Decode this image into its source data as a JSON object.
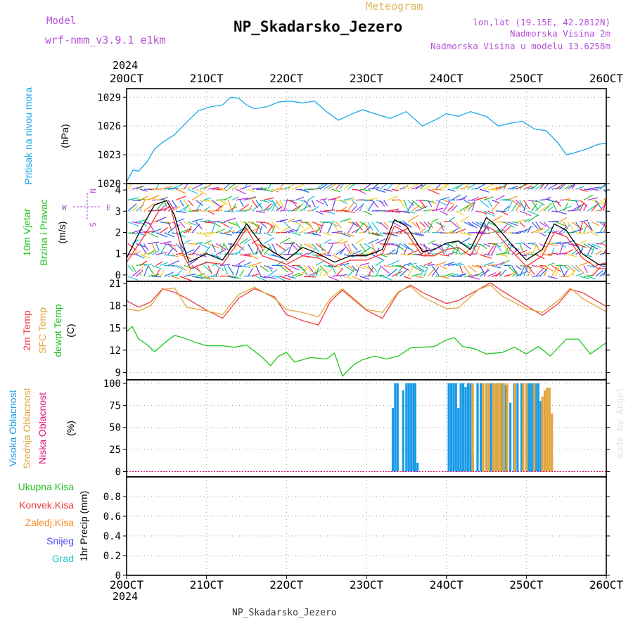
{
  "header": {
    "model_label": "Model",
    "model_value": "wrf-nmm_v3.9.1  e1km",
    "meteogram_label": "Meteogram",
    "station_title": "NP_Skadarsko_Jezero",
    "coords": "lon,lat (19.15E, 42.2812N)",
    "elevation": "Nadmorska Visina 2m",
    "model_elevation": "Nadmorska Visina u modelu 13.6258m",
    "footer_station": "NP_Skadarsko_Jezero",
    "watermark": "made by Angel",
    "colors": {
      "purple": "#b44fd8",
      "gold": "#e0b860",
      "black": "#000000"
    }
  },
  "time_axis": {
    "year": "2024",
    "ticks": [
      "20OCT",
      "21OCT",
      "22OCT",
      "23OCT",
      "24OCT",
      "25OCT",
      "26OCT"
    ]
  },
  "chart_data": [
    {
      "type": "line",
      "panel": "pressure",
      "ylabel": [
        "Pritisak na nivou mora",
        "(hPa)"
      ],
      "ylim": [
        1020,
        1029.9
      ],
      "yticks": [
        1020,
        1023,
        1026,
        1029
      ],
      "x_unit": "days since 20OCT",
      "series": [
        {
          "color": "#1aa8e8",
          "x": [
            0,
            0.08,
            0.15,
            0.25,
            0.35,
            0.45,
            0.6,
            0.75,
            0.9,
            1.05,
            1.2,
            1.3,
            1.4,
            1.5,
            1.6,
            1.75,
            1.9,
            2.05,
            2.2,
            2.35,
            2.5,
            2.65,
            2.8,
            2.95,
            3.1,
            3.3,
            3.5,
            3.7,
            3.9,
            4.0,
            4.15,
            4.3,
            4.5,
            4.65,
            4.8,
            4.95,
            5.1,
            5.25,
            5.4,
            5.5,
            5.6,
            5.75,
            5.9,
            6.0
          ],
          "y": [
            1020.2,
            1021.4,
            1021.3,
            1022.2,
            1023.6,
            1024.3,
            1025.1,
            1026.4,
            1027.6,
            1028.0,
            1028.2,
            1029.0,
            1028.9,
            1028.2,
            1027.8,
            1028.0,
            1028.5,
            1028.6,
            1028.4,
            1028.6,
            1027.5,
            1026.6,
            1027.2,
            1027.7,
            1027.3,
            1026.8,
            1027.5,
            1026.0,
            1026.8,
            1027.3,
            1027.0,
            1027.5,
            1027.0,
            1026.0,
            1026.3,
            1026.5,
            1025.7,
            1025.5,
            1024.2,
            1023.0,
            1023.2,
            1023.6,
            1024.1,
            1024.2
          ]
        }
      ]
    },
    {
      "type": "line",
      "panel": "wind",
      "ylabel": [
        "10m Vjetar",
        "Brzina i Pravac",
        "(m/s)"
      ],
      "compass": {
        "n": "N",
        "s": "S",
        "w": "W",
        "e": "E"
      },
      "ylim": [
        -0.3,
        4.3
      ],
      "yticks": [
        0,
        1,
        2,
        3,
        4
      ],
      "x_unit": "days since 20OCT",
      "series": [
        {
          "color": "#000000",
          "x": [
            0,
            0.2,
            0.35,
            0.5,
            0.6,
            0.7,
            0.78,
            1.0,
            1.2,
            1.35,
            1.5,
            1.7,
            2.0,
            2.2,
            2.4,
            2.6,
            2.8,
            3.0,
            3.2,
            3.35,
            3.5,
            3.7,
            3.85,
            4.0,
            4.15,
            4.3,
            4.5,
            4.6,
            4.8,
            5.0,
            5.2,
            5.35,
            5.5,
            5.7,
            5.9,
            6.0
          ],
          "y": [
            0.8,
            2.3,
            3.3,
            3.5,
            2.8,
            1.5,
            0.6,
            1.0,
            0.7,
            1.5,
            2.4,
            1.4,
            0.7,
            1.3,
            1.0,
            0.6,
            0.9,
            0.9,
            1.2,
            2.6,
            2.3,
            1.1,
            1.2,
            1.5,
            1.6,
            1.2,
            2.7,
            2.4,
            1.5,
            0.7,
            1.2,
            2.4,
            2.1,
            1.0,
            0.5,
            0.5
          ]
        },
        {
          "color": "#ff3333",
          "x": [
            0,
            0.25,
            0.4,
            0.55,
            0.7,
            0.8,
            1.0,
            1.2,
            1.35,
            1.5,
            1.7,
            2.0,
            2.2,
            2.4,
            2.6,
            2.8,
            3.0,
            3.2,
            3.35,
            3.5,
            3.7,
            3.85,
            4.0,
            4.15,
            4.3,
            4.5,
            4.6,
            4.8,
            5.0,
            5.2,
            5.35,
            5.5,
            5.7,
            5.9,
            6.0
          ],
          "y": [
            0.6,
            2.0,
            3.0,
            3.2,
            1.0,
            0.3,
            0.6,
            0.5,
            1.3,
            2.2,
            0.9,
            0.5,
            0.9,
            0.8,
            0.4,
            0.7,
            0.7,
            1.0,
            2.3,
            2.0,
            0.9,
            0.9,
            1.2,
            1.3,
            0.9,
            2.3,
            2.1,
            1.2,
            0.4,
            0.9,
            2.0,
            1.8,
            0.8,
            0.3,
            0.3
          ]
        }
      ]
    },
    {
      "type": "line",
      "panel": "temperature",
      "ylabel": [
        "2m Temp",
        "SFC Temp",
        "dewpt Temp",
        "(C)"
      ],
      "ylim": [
        8,
        21.3
      ],
      "yticks": [
        9,
        12,
        15,
        18,
        21
      ],
      "x_unit": "days since 20OCT",
      "series": [
        {
          "name": "2m Temp",
          "color": "#ee3b3b",
          "x": [
            0,
            0.15,
            0.3,
            0.45,
            0.6,
            0.75,
            1.0,
            1.2,
            1.4,
            1.6,
            1.85,
            2.0,
            2.2,
            2.4,
            2.55,
            2.7,
            3.0,
            3.2,
            3.4,
            3.55,
            3.7,
            4.0,
            4.15,
            4.4,
            4.55,
            4.7,
            5.0,
            5.2,
            5.4,
            5.55,
            5.7,
            6.0
          ],
          "y": [
            18.7,
            17.8,
            18.5,
            20.3,
            19.8,
            19.0,
            17.4,
            16.3,
            19.0,
            20.3,
            19.2,
            16.8,
            16.0,
            15.4,
            18.6,
            20.1,
            17.4,
            16.3,
            19.8,
            20.8,
            19.8,
            18.3,
            18.7,
            20.2,
            21.1,
            20.0,
            18.0,
            16.7,
            18.3,
            20.2,
            19.8,
            17.9
          ]
        },
        {
          "name": "SFC Temp",
          "color": "#e2a53c",
          "x": [
            0,
            0.15,
            0.3,
            0.45,
            0.6,
            0.75,
            1.0,
            1.2,
            1.4,
            1.6,
            1.85,
            2.0,
            2.2,
            2.4,
            2.55,
            2.7,
            3.0,
            3.2,
            3.4,
            3.55,
            3.7,
            4.0,
            4.15,
            4.4,
            4.55,
            4.7,
            5.0,
            5.2,
            5.4,
            5.55,
            5.7,
            6.0
          ],
          "y": [
            17.6,
            17.3,
            18.0,
            20.2,
            20.4,
            17.8,
            17.3,
            16.8,
            19.5,
            20.5,
            19.0,
            17.5,
            17.1,
            16.5,
            19.0,
            20.3,
            17.5,
            17.1,
            19.9,
            20.6,
            19.2,
            17.6,
            17.7,
            20.2,
            20.8,
            19.3,
            17.6,
            17.1,
            18.7,
            20.4,
            19.0,
            17.2
          ]
        },
        {
          "name": "dewpt Temp",
          "color": "#1ec81e",
          "x": [
            0,
            0.07,
            0.15,
            0.25,
            0.35,
            0.5,
            0.6,
            0.7,
            0.85,
            1.0,
            1.2,
            1.35,
            1.5,
            1.7,
            1.8,
            1.9,
            2.0,
            2.1,
            2.3,
            2.5,
            2.6,
            2.7,
            2.85,
            2.95,
            3.1,
            3.25,
            3.4,
            3.55,
            3.7,
            3.85,
            4.0,
            4.1,
            4.2,
            4.35,
            4.5,
            4.7,
            4.85,
            5.0,
            5.15,
            5.3,
            5.5,
            5.65,
            5.8,
            6.0
          ],
          "y": [
            14.5,
            15.2,
            13.5,
            12.8,
            11.8,
            13.2,
            14.0,
            13.7,
            13.1,
            12.6,
            12.6,
            12.4,
            12.7,
            11.0,
            9.9,
            11.2,
            11.7,
            10.4,
            11.0,
            10.8,
            11.6,
            8.5,
            10.1,
            10.7,
            11.2,
            10.8,
            11.2,
            12.3,
            12.4,
            12.5,
            13.4,
            13.7,
            12.5,
            12.2,
            11.5,
            11.7,
            12.4,
            11.5,
            12.5,
            11.2,
            13.5,
            13.5,
            11.5,
            13.0
          ]
        }
      ]
    },
    {
      "type": "bar",
      "panel": "cloud",
      "ylabel": [
        "Visoka Oblacnost",
        "Srednja Oblacnost",
        "Niska Oblacnost",
        "(%)"
      ],
      "ylim": [
        -6,
        104
      ],
      "yticks": [
        0,
        25,
        50,
        75,
        100
      ],
      "x_unit": "days since 20OCT",
      "series": [
        {
          "name": "Visoka Oblacnost",
          "color": "#1a9be8",
          "x": [
            3.33,
            3.36,
            3.39,
            3.46,
            3.5,
            3.53,
            3.56,
            3.59,
            3.61,
            3.64,
            4.03,
            4.06,
            4.09,
            4.12,
            4.15,
            4.18,
            4.21,
            4.24,
            4.27,
            4.3,
            4.33,
            4.39,
            4.43,
            4.46,
            4.5,
            4.56,
            4.62,
            4.69,
            4.74,
            4.8,
            4.85,
            4.89,
            4.94,
            5.03,
            5.06,
            5.09,
            5.12,
            5.15,
            5.18
          ],
          "y": [
            72,
            100,
            100,
            92,
            100,
            100,
            100,
            100,
            100,
            10,
            100,
            100,
            100,
            100,
            72,
            100,
            100,
            96,
            100,
            100,
            20,
            100,
            100,
            100,
            100,
            100,
            100,
            100,
            98,
            78,
            100,
            100,
            100,
            100,
            100,
            100,
            100,
            100,
            80
          ]
        },
        {
          "name": "Srednja Oblacnost",
          "color": "#e2a53c",
          "x": [
            4.33,
            4.46,
            4.5,
            4.53,
            4.59,
            4.62,
            4.65,
            4.68,
            4.72,
            4.76,
            4.86,
            4.96,
            5.0,
            5.1,
            5.2,
            5.23,
            5.26,
            5.29,
            5.32
          ],
          "y": [
            100,
            100,
            100,
            100,
            100,
            100,
            100,
            100,
            100,
            100,
            100,
            100,
            100,
            100,
            85,
            92,
            95,
            95,
            66
          ]
        },
        {
          "name": "Niska Oblacnost",
          "color": "#e0107a",
          "x": [],
          "y": []
        }
      ]
    },
    {
      "type": "bar",
      "panel": "precip",
      "ylabel": [
        "Ukupna Kisa",
        "Konvek.Kisa",
        "Zaledj.Kisa",
        "Snijeg",
        "Grad",
        "1hr Precip (mm)"
      ],
      "ylim": [
        0,
        1
      ],
      "yticks": [
        0,
        0.2,
        0.4,
        0.6,
        0.8
      ],
      "ytick_labels": [
        "0",
        "0.2",
        "0.4",
        "0.6",
        "0.8"
      ],
      "legend_colors": [
        "#22c022",
        "#ee3b3b",
        "#ff8c2a",
        "#4c4cf0",
        "#20c8c8"
      ],
      "series": []
    }
  ]
}
